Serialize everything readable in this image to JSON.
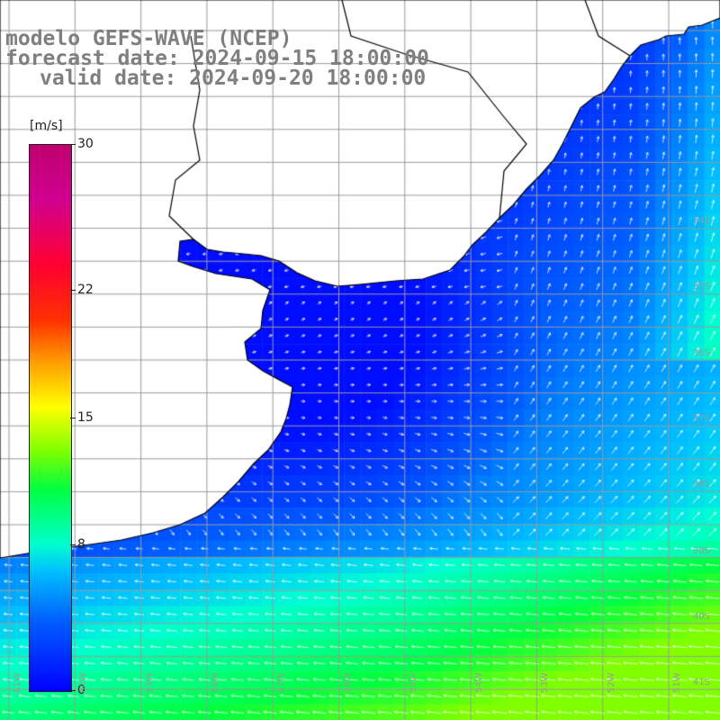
{
  "title": {
    "line1": "modelo GEFS-WAVE (NCEP)",
    "line2": "forecast date: 2024-09-15 18:00:00",
    "line3": "valid date: 2024-09-20 18:00:00"
  },
  "colorbar": {
    "unit": "[m/s]",
    "ticks": [
      {
        "label": "30",
        "value": 30
      },
      {
        "label": "22",
        "value": 22
      },
      {
        "label": "15",
        "value": 15
      },
      {
        "label": "8",
        "value": 8
      },
      {
        "label": "0",
        "value": 0
      }
    ],
    "min": 0,
    "max": 30
  },
  "map": {
    "lat_labels": [
      "34S",
      "35S",
      "36S",
      "37S",
      "38S",
      "39S",
      "40S",
      "41S"
    ],
    "lon_labels": [
      "61W",
      "60W",
      "59W",
      "58W",
      "57W",
      "56W",
      "55W",
      "54W",
      "53W",
      "52W",
      "51W"
    ],
    "colors": {
      "land": "#ffffff",
      "coast": "#000000",
      "grid": "#9a9a9a",
      "arrow": "#ffffff"
    },
    "field_description": "wind speed with direction arrows over the Rio de la Plata estuary and adjacent South Atlantic"
  }
}
